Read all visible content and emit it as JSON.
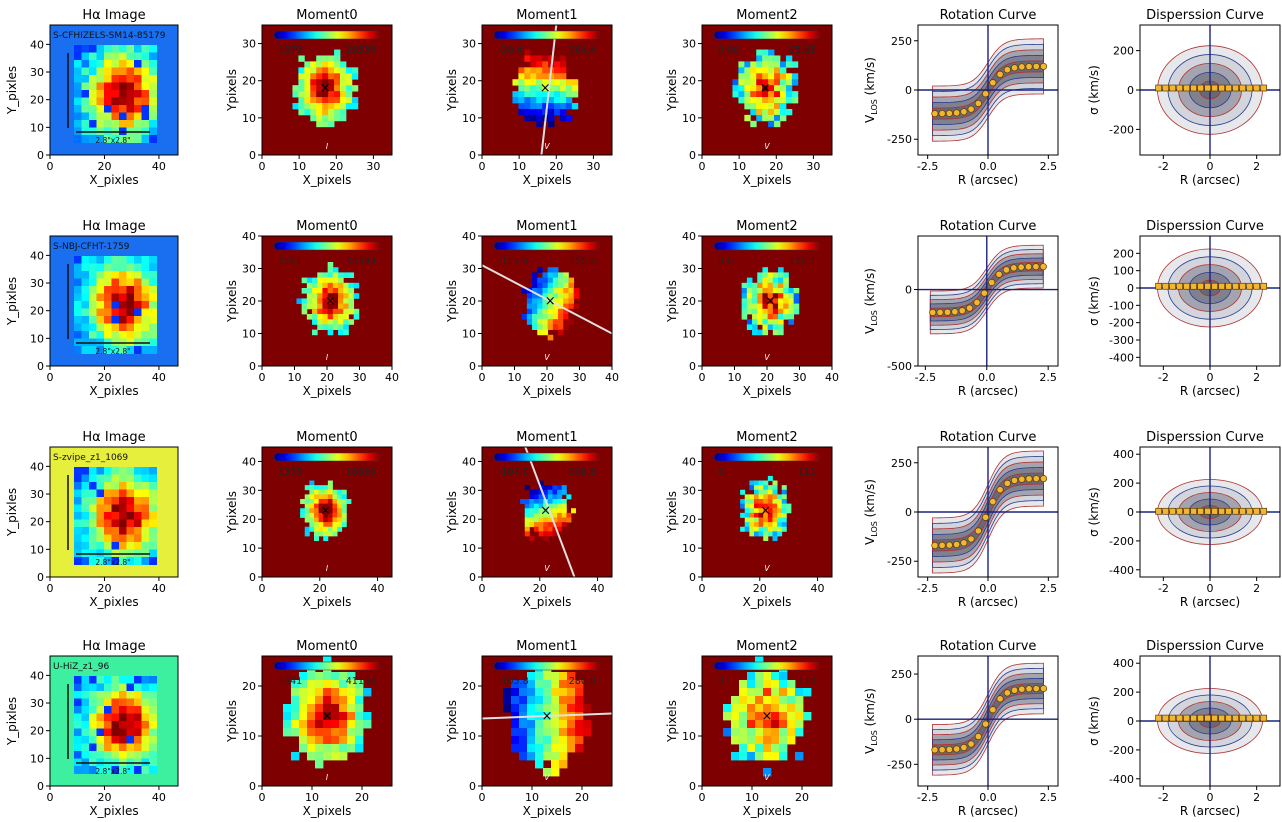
{
  "colors": {
    "background": "#ffffff",
    "hires_blue": "#1a6ff0",
    "hires_yellow": "#e6f03c",
    "hires_cyan": "#3cf0a0",
    "moment_bg": "#7f0000",
    "rc_marker": "#f2b632",
    "contour_red": "#b03030",
    "contour_blue": "#2a3a8c",
    "axisline": "#1a237e",
    "slit": "#e0e0e0"
  },
  "column_titles": {
    "halpha": "Hα Image",
    "moment0": "Moment0",
    "moment1": "Moment1",
    "moment2": "Moment2",
    "rotation": "Rotation Curve",
    "dispersion": "Disperssion Curve"
  },
  "labels": {
    "x_pixles": "X_pixles",
    "y_pixles": "Y_pixles",
    "x_pixels": "X_pixels",
    "ypixels": "Ypixels",
    "r_arcsec": "R (arcsec)",
    "vlos": "V",
    "vlos_sub": "LOS",
    "vlos_unit": " (km/s)",
    "sigma": "σ (km/s)",
    "scalebar": "2.8\"x2.8\"",
    "m0_unit": "I",
    "m1_unit": "V",
    "m2_unit": "V"
  },
  "chart_data": [
    {
      "type": "heatmap-grid-row",
      "galaxy": "S-CFHIZELS-SM14-85179",
      "halpha_bg": "hires_blue",
      "halpha": {
        "xlim": [
          0,
          47
        ],
        "ylim": [
          0,
          47
        ],
        "xticks": [
          0,
          20,
          40
        ],
        "yticks": [
          0,
          10,
          20,
          30,
          40
        ]
      },
      "moments": {
        "xlim": [
          0,
          35
        ],
        "ylim": [
          0,
          35
        ],
        "xticks": [
          0,
          10,
          20,
          30
        ],
        "yticks": [
          0,
          10,
          20,
          30
        ],
        "center": [
          17,
          18
        ],
        "moment0_range": [
          "1879",
          "29538"
        ],
        "moment1_range": [
          "-20.4",
          "264.4"
        ],
        "moment2_range": [
          "0.00",
          "95.85"
        ],
        "slit": [
          [
            16,
            0
          ],
          [
            20,
            35
          ]
        ]
      },
      "rotation": {
        "xlim": [
          -2.9,
          2.9
        ],
        "ylim": [
          -330,
          330
        ],
        "xticks": [
          -2.5,
          0,
          2.5
        ],
        "xticklabels": [
          "-2.5",
          "0.0",
          "2.5"
        ],
        "yticks": [
          -250,
          0,
          250
        ],
        "amp": 120
      },
      "dispersion": {
        "xlim": [
          -3,
          3
        ],
        "ylim": [
          -330,
          330
        ],
        "xticks": [
          -2,
          0,
          2
        ],
        "yticks": [
          -200,
          0,
          200
        ],
        "level": 10
      }
    },
    {
      "type": "heatmap-grid-row",
      "galaxy": "S-NBJ-CFHT-1759",
      "halpha_bg": "hires_blue",
      "halpha": {
        "xlim": [
          0,
          47
        ],
        "ylim": [
          0,
          47
        ],
        "xticks": [
          0,
          20,
          40
        ],
        "yticks": [
          0,
          10,
          20,
          30,
          40
        ]
      },
      "moments": {
        "xlim": [
          0,
          40
        ],
        "ylim": [
          0,
          40
        ],
        "xticks": [
          0,
          10,
          20,
          30,
          40
        ],
        "yticks": [
          0,
          10,
          20,
          30,
          40
        ],
        "center": [
          21,
          20
        ],
        "moment0_range": [
          "3261",
          "35399"
        ],
        "moment1_range": [
          "-127.9",
          "150.6"
        ],
        "moment2_range": [
          "0.0",
          "128.1"
        ],
        "slit": [
          [
            0,
            31
          ],
          [
            40,
            10
          ]
        ]
      },
      "rotation": {
        "xlim": [
          -2.8,
          2.9
        ],
        "ylim": [
          -500,
          350
        ],
        "xticks": [
          -2.5,
          0,
          2.5
        ],
        "xticklabels": [
          "-2.5",
          "0.0",
          "2.5"
        ],
        "yticks": [
          -500,
          0
        ],
        "amp": 150
      },
      "dispersion": {
        "xlim": [
          -3,
          3
        ],
        "ylim": [
          -450,
          300
        ],
        "xticks": [
          -2,
          0,
          2
        ],
        "yticks": [
          -400,
          -300,
          -200,
          -100,
          0,
          100,
          200
        ],
        "level": 10
      }
    },
    {
      "type": "heatmap-grid-row",
      "galaxy": "S-zvipe_z1_1069",
      "halpha_bg": "hires_yellow",
      "halpha": {
        "xlim": [
          0,
          47
        ],
        "ylim": [
          0,
          47
        ],
        "xticks": [
          0,
          20,
          40
        ],
        "yticks": [
          0,
          10,
          20,
          30,
          40
        ]
      },
      "moments": {
        "xlim": [
          0,
          45
        ],
        "ylim": [
          0,
          45
        ],
        "xticks": [
          0,
          20,
          40
        ],
        "yticks": [
          0,
          10,
          20,
          30,
          40
        ],
        "center": [
          22,
          23
        ],
        "moment0_range": [
          "1375",
          "18529"
        ],
        "moment1_range": [
          "-107.9",
          "308.8"
        ],
        "moment2_range": [
          "0",
          "111"
        ],
        "slit": [
          [
            15,
            45
          ],
          [
            32,
            0
          ]
        ]
      },
      "rotation": {
        "xlim": [
          -2.9,
          2.9
        ],
        "ylim": [
          -330,
          330
        ],
        "xticks": [
          -2.5,
          0,
          2.5
        ],
        "xticklabels": [
          "-2.5",
          "0.0",
          "2.5"
        ],
        "yticks": [
          -250,
          0,
          250
        ],
        "amp": 170
      },
      "dispersion": {
        "xlim": [
          -3,
          3
        ],
        "ylim": [
          -450,
          450
        ],
        "xticks": [
          -2,
          0,
          2
        ],
        "yticks": [
          -400,
          -200,
          0,
          200,
          400
        ],
        "level": 5
      }
    },
    {
      "type": "heatmap-grid-row",
      "galaxy": "U-HiZ_z1_96",
      "halpha_bg": "hires_cyan",
      "halpha": {
        "xlim": [
          0,
          47
        ],
        "ylim": [
          0,
          47
        ],
        "xticks": [
          0,
          20,
          40
        ],
        "yticks": [
          0,
          10,
          20,
          30,
          40
        ]
      },
      "moments": {
        "xlim": [
          0,
          26
        ],
        "ylim": [
          0,
          26
        ],
        "xticks": [
          0,
          10,
          20
        ],
        "yticks": [
          0,
          10,
          20
        ],
        "center": [
          13,
          14
        ],
        "moment0_range": [
          "1841",
          "41136"
        ],
        "moment1_range": [
          "-105.8",
          "280.0"
        ],
        "moment2_range": [
          "0",
          "114"
        ],
        "slit": [
          [
            0,
            13.5
          ],
          [
            26,
            14.5
          ]
        ]
      },
      "rotation": {
        "xlim": [
          -2.9,
          2.9
        ],
        "ylim": [
          -370,
          350
        ],
        "xticks": [
          -2.5,
          0,
          2.5
        ],
        "xticklabels": [
          "-2.5",
          "0.0",
          "2.5"
        ],
        "yticks": [
          -250,
          0,
          250
        ],
        "amp": 170
      },
      "dispersion": {
        "xlim": [
          -3,
          3
        ],
        "ylim": [
          -450,
          450
        ],
        "xticks": [
          -2,
          0,
          2
        ],
        "yticks": [
          -400,
          -200,
          0,
          200,
          400
        ],
        "level": 20
      }
    }
  ]
}
